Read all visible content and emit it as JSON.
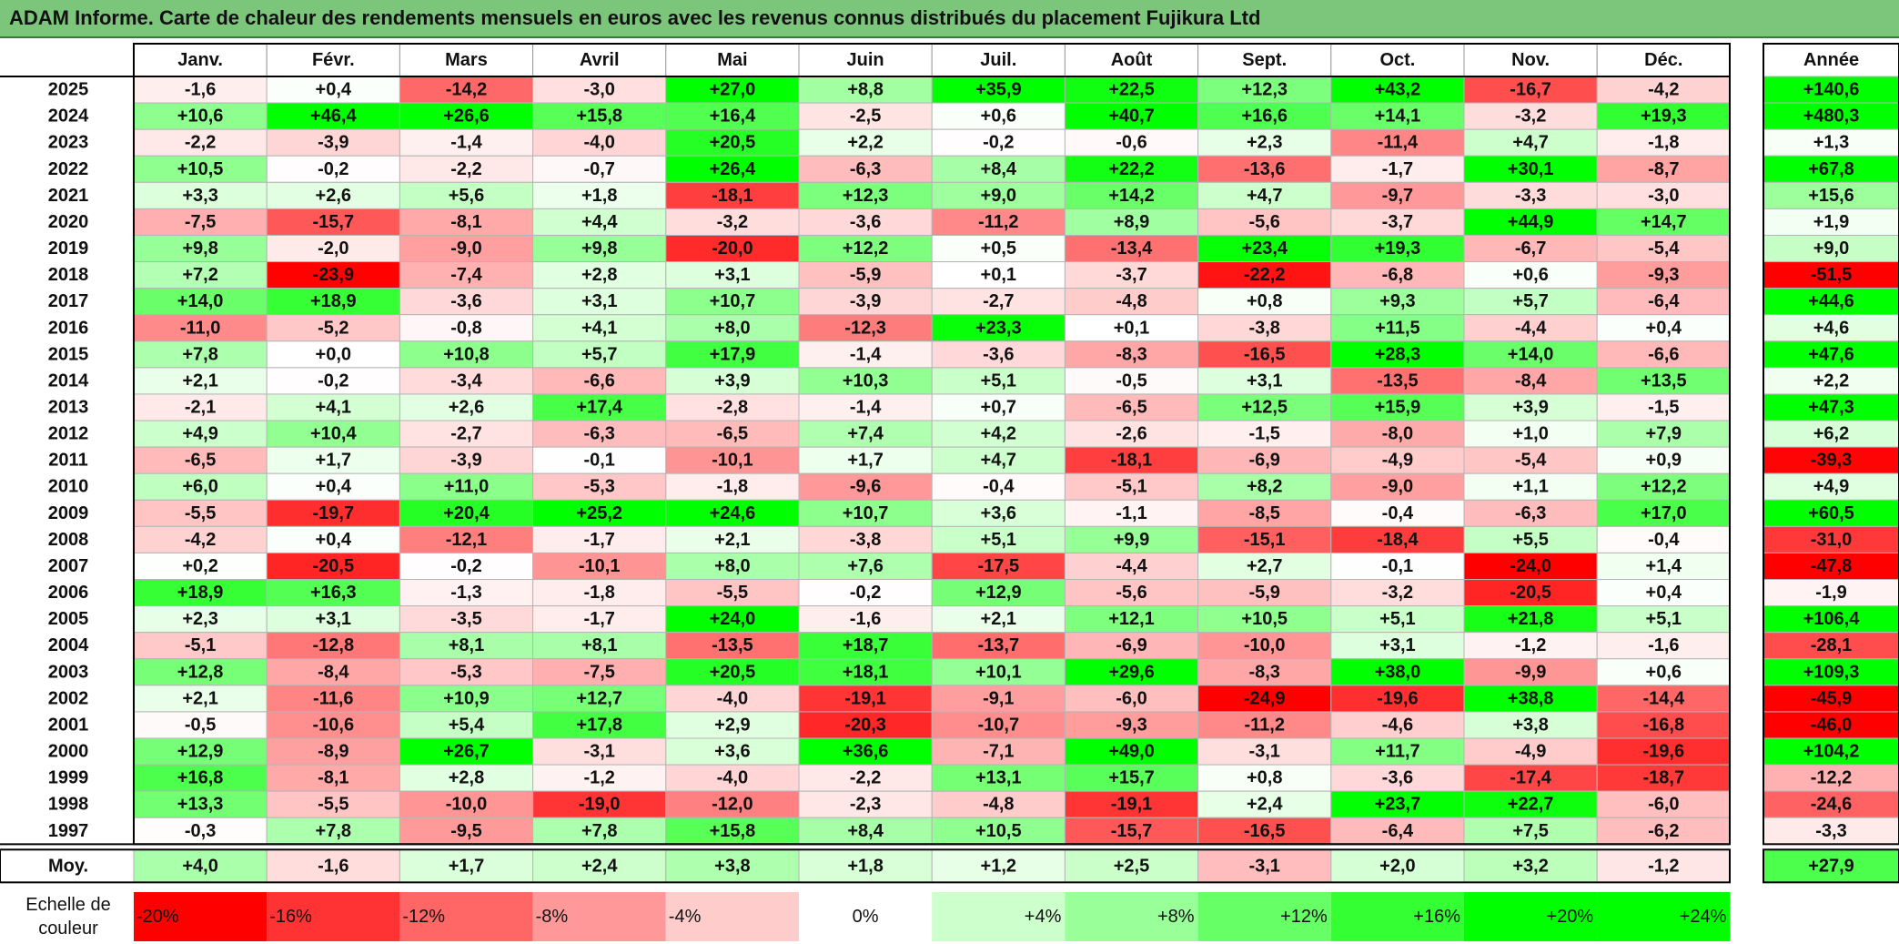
{
  "title": "ADAM Informe. Carte de chaleur des rendements mensuels en euros avec les revenus connus distribués du placement Fujikura Ltd",
  "chart_data": {
    "type": "heatmap",
    "months": [
      "Janv.",
      "Févr.",
      "Mars",
      "Avril",
      "Mai",
      "Juin",
      "Juil.",
      "Août",
      "Sept.",
      "Oct.",
      "Nov.",
      "Déc."
    ],
    "year_header": "Année",
    "rows": [
      {
        "year": "2025",
        "values": [
          "-1,6",
          "+0,4",
          "-14,2",
          "-3,0",
          "+27,0",
          "+8,8",
          "+35,9",
          "+22,5",
          "+12,3",
          "+43,2",
          "-16,7",
          "-4,2"
        ],
        "annual": "+140,6"
      },
      {
        "year": "2024",
        "values": [
          "+10,6",
          "+46,4",
          "+26,6",
          "+15,8",
          "+16,4",
          "-2,5",
          "+0,6",
          "+40,7",
          "+16,6",
          "+14,1",
          "-3,2",
          "+19,3"
        ],
        "annual": "+480,3"
      },
      {
        "year": "2023",
        "values": [
          "-2,2",
          "-3,9",
          "-1,4",
          "-4,0",
          "+20,5",
          "+2,2",
          "-0,2",
          "-0,6",
          "+2,3",
          "-11,4",
          "+4,7",
          "-1,8"
        ],
        "annual": "+1,3"
      },
      {
        "year": "2022",
        "values": [
          "+10,5",
          "-0,2",
          "-2,2",
          "-0,7",
          "+26,4",
          "-6,3",
          "+8,4",
          "+22,2",
          "-13,6",
          "-1,7",
          "+30,1",
          "-8,7"
        ],
        "annual": "+67,8"
      },
      {
        "year": "2021",
        "values": [
          "+3,3",
          "+2,6",
          "+5,6",
          "+1,8",
          "-18,1",
          "+12,3",
          "+9,0",
          "+14,2",
          "+4,7",
          "-9,7",
          "-3,3",
          "-3,0"
        ],
        "annual": "+15,6"
      },
      {
        "year": "2020",
        "values": [
          "-7,5",
          "-15,7",
          "-8,1",
          "+4,4",
          "-3,2",
          "-3,6",
          "-11,2",
          "+8,9",
          "-5,6",
          "-3,7",
          "+44,9",
          "+14,7"
        ],
        "annual": "+1,9"
      },
      {
        "year": "2019",
        "values": [
          "+9,8",
          "-2,0",
          "-9,0",
          "+9,8",
          "-20,0",
          "+12,2",
          "+0,5",
          "-13,4",
          "+23,4",
          "+19,3",
          "-6,7",
          "-5,4"
        ],
        "annual": "+9,0"
      },
      {
        "year": "2018",
        "values": [
          "+7,2",
          "-23,9",
          "-7,4",
          "+2,8",
          "+3,1",
          "-5,9",
          "+0,1",
          "-3,7",
          "-22,2",
          "-6,8",
          "+0,6",
          "-9,3"
        ],
        "annual": "-51,5"
      },
      {
        "year": "2017",
        "values": [
          "+14,0",
          "+18,9",
          "-3,6",
          "+3,1",
          "+10,7",
          "-3,9",
          "-2,7",
          "-4,8",
          "+0,8",
          "+9,3",
          "+5,7",
          "-6,4"
        ],
        "annual": "+44,6"
      },
      {
        "year": "2016",
        "values": [
          "-11,0",
          "-5,2",
          "-0,8",
          "+4,1",
          "+8,0",
          "-12,3",
          "+23,3",
          "+0,1",
          "-3,8",
          "+11,5",
          "-4,4",
          "+0,4"
        ],
        "annual": "+4,6"
      },
      {
        "year": "2015",
        "values": [
          "+7,8",
          "+0,0",
          "+10,8",
          "+5,7",
          "+17,9",
          "-1,4",
          "-3,6",
          "-8,3",
          "-16,5",
          "+28,3",
          "+14,0",
          "-6,6"
        ],
        "annual": "+47,6"
      },
      {
        "year": "2014",
        "values": [
          "+2,1",
          "-0,2",
          "-3,4",
          "-6,6",
          "+3,9",
          "+10,3",
          "+5,1",
          "-0,5",
          "+3,1",
          "-13,5",
          "-8,4",
          "+13,5"
        ],
        "annual": "+2,2"
      },
      {
        "year": "2013",
        "values": [
          "-2,1",
          "+4,1",
          "+2,6",
          "+17,4",
          "-2,8",
          "-1,4",
          "+0,7",
          "-6,5",
          "+12,5",
          "+15,9",
          "+3,9",
          "-1,5"
        ],
        "annual": "+47,3"
      },
      {
        "year": "2012",
        "values": [
          "+4,9",
          "+10,4",
          "-2,7",
          "-6,3",
          "-6,5",
          "+7,4",
          "+4,2",
          "-2,6",
          "-1,5",
          "-8,0",
          "+1,0",
          "+7,9"
        ],
        "annual": "+6,2"
      },
      {
        "year": "2011",
        "values": [
          "-6,5",
          "+1,7",
          "-3,9",
          "-0,1",
          "-10,1",
          "+1,7",
          "+4,7",
          "-18,1",
          "-6,9",
          "-4,9",
          "-5,4",
          "+0,9"
        ],
        "annual": "-39,3"
      },
      {
        "year": "2010",
        "values": [
          "+6,0",
          "+0,4",
          "+11,0",
          "-5,3",
          "-1,8",
          "-9,6",
          "-0,4",
          "-5,1",
          "+8,2",
          "-9,0",
          "+1,1",
          "+12,2"
        ],
        "annual": "+4,9"
      },
      {
        "year": "2009",
        "values": [
          "-5,5",
          "-19,7",
          "+20,4",
          "+25,2",
          "+24,6",
          "+10,7",
          "+3,6",
          "-1,1",
          "-8,5",
          "-0,4",
          "-6,3",
          "+17,0"
        ],
        "annual": "+60,5"
      },
      {
        "year": "2008",
        "values": [
          "-4,2",
          "+0,4",
          "-12,1",
          "-1,7",
          "+2,1",
          "-3,8",
          "+5,1",
          "+9,9",
          "-15,1",
          "-18,4",
          "+5,5",
          "-0,4"
        ],
        "annual": "-31,0"
      },
      {
        "year": "2007",
        "values": [
          "+0,2",
          "-20,5",
          "-0,2",
          "-10,1",
          "+8,0",
          "+7,6",
          "-17,5",
          "-4,4",
          "+2,7",
          "-0,1",
          "-24,0",
          "+1,4"
        ],
        "annual": "-47,8"
      },
      {
        "year": "2006",
        "values": [
          "+18,9",
          "+16,3",
          "-1,3",
          "-1,8",
          "-5,5",
          "-0,2",
          "+12,9",
          "-5,6",
          "-5,9",
          "-3,2",
          "-20,5",
          "+0,4"
        ],
        "annual": "-1,9"
      },
      {
        "year": "2005",
        "values": [
          "+2,3",
          "+3,1",
          "-3,5",
          "-1,7",
          "+24,0",
          "-1,6",
          "+2,1",
          "+12,1",
          "+10,5",
          "+5,1",
          "+21,8",
          "+5,1"
        ],
        "annual": "+106,4"
      },
      {
        "year": "2004",
        "values": [
          "-5,1",
          "-12,8",
          "+8,1",
          "+8,1",
          "-13,5",
          "+18,7",
          "-13,7",
          "-6,9",
          "-10,0",
          "+3,1",
          "-1,2",
          "-1,6"
        ],
        "annual": "-28,1"
      },
      {
        "year": "2003",
        "values": [
          "+12,8",
          "-8,4",
          "-5,3",
          "-7,5",
          "+20,5",
          "+18,1",
          "+10,1",
          "+29,6",
          "-8,3",
          "+38,0",
          "-9,9",
          "+0,6"
        ],
        "annual": "+109,3"
      },
      {
        "year": "2002",
        "values": [
          "+2,1",
          "-11,6",
          "+10,9",
          "+12,7",
          "-4,0",
          "-19,1",
          "-9,1",
          "-6,0",
          "-24,9",
          "-19,6",
          "+38,8",
          "-14,4"
        ],
        "annual": "-45,9"
      },
      {
        "year": "2001",
        "values": [
          "-0,5",
          "-10,6",
          "+5,4",
          "+17,8",
          "+2,9",
          "-20,3",
          "-10,7",
          "-9,3",
          "-11,2",
          "-4,6",
          "+3,8",
          "-16,8"
        ],
        "annual": "-46,0"
      },
      {
        "year": "2000",
        "values": [
          "+12,9",
          "-8,9",
          "+26,7",
          "-3,1",
          "+3,6",
          "+36,6",
          "-7,1",
          "+49,0",
          "-3,1",
          "+11,7",
          "-4,9",
          "-19,6"
        ],
        "annual": "+104,2"
      },
      {
        "year": "1999",
        "values": [
          "+16,8",
          "-8,1",
          "+2,8",
          "-1,2",
          "-4,0",
          "-2,2",
          "+13,1",
          "+15,7",
          "+0,8",
          "-3,6",
          "-17,4",
          "-18,7"
        ],
        "annual": "-12,2"
      },
      {
        "year": "1998",
        "values": [
          "+13,3",
          "-5,5",
          "-10,0",
          "-19,0",
          "-12,0",
          "-2,3",
          "-4,8",
          "-19,1",
          "+2,4",
          "+23,7",
          "+22,7",
          "-6,0"
        ],
        "annual": "-24,6"
      },
      {
        "year": "1997",
        "values": [
          "-0,3",
          "+7,8",
          "-9,5",
          "+7,8",
          "+15,8",
          "+8,4",
          "+10,5",
          "-15,7",
          "-16,5",
          "-6,4",
          "+7,5",
          "-6,2"
        ],
        "annual": "-3,3"
      }
    ],
    "average": {
      "label": "Moy.",
      "values": [
        "+4,0",
        "-1,6",
        "+1,7",
        "+2,4",
        "+3,8",
        "+1,8",
        "+1,2",
        "+2,5",
        "-3,1",
        "+2,0",
        "+3,2",
        "-1,2"
      ],
      "annual": "+27,9"
    },
    "scale": {
      "label_line1": "Echelle de",
      "label_line2": "couleur",
      "steps": [
        {
          "label": "-20%",
          "value": -20
        },
        {
          "label": "-16%",
          "value": -16
        },
        {
          "label": "-12%",
          "value": -12
        },
        {
          "label": "-8%",
          "value": -8
        },
        {
          "label": "-4%",
          "value": -4
        },
        {
          "label": "0%",
          "value": 0
        },
        {
          "label": "+4%",
          "value": 4
        },
        {
          "label": "+8%",
          "value": 8
        },
        {
          "label": "+12%",
          "value": 12
        },
        {
          "label": "+16%",
          "value": 16
        },
        {
          "label": "+20%",
          "value": 20
        },
        {
          "label": "+24%",
          "value": 24
        }
      ]
    },
    "colors": {
      "negative_max": "#ff0000",
      "neutral": "#ffffff",
      "positive_max": "#00ff00",
      "title_background": "#7cc67c"
    }
  }
}
